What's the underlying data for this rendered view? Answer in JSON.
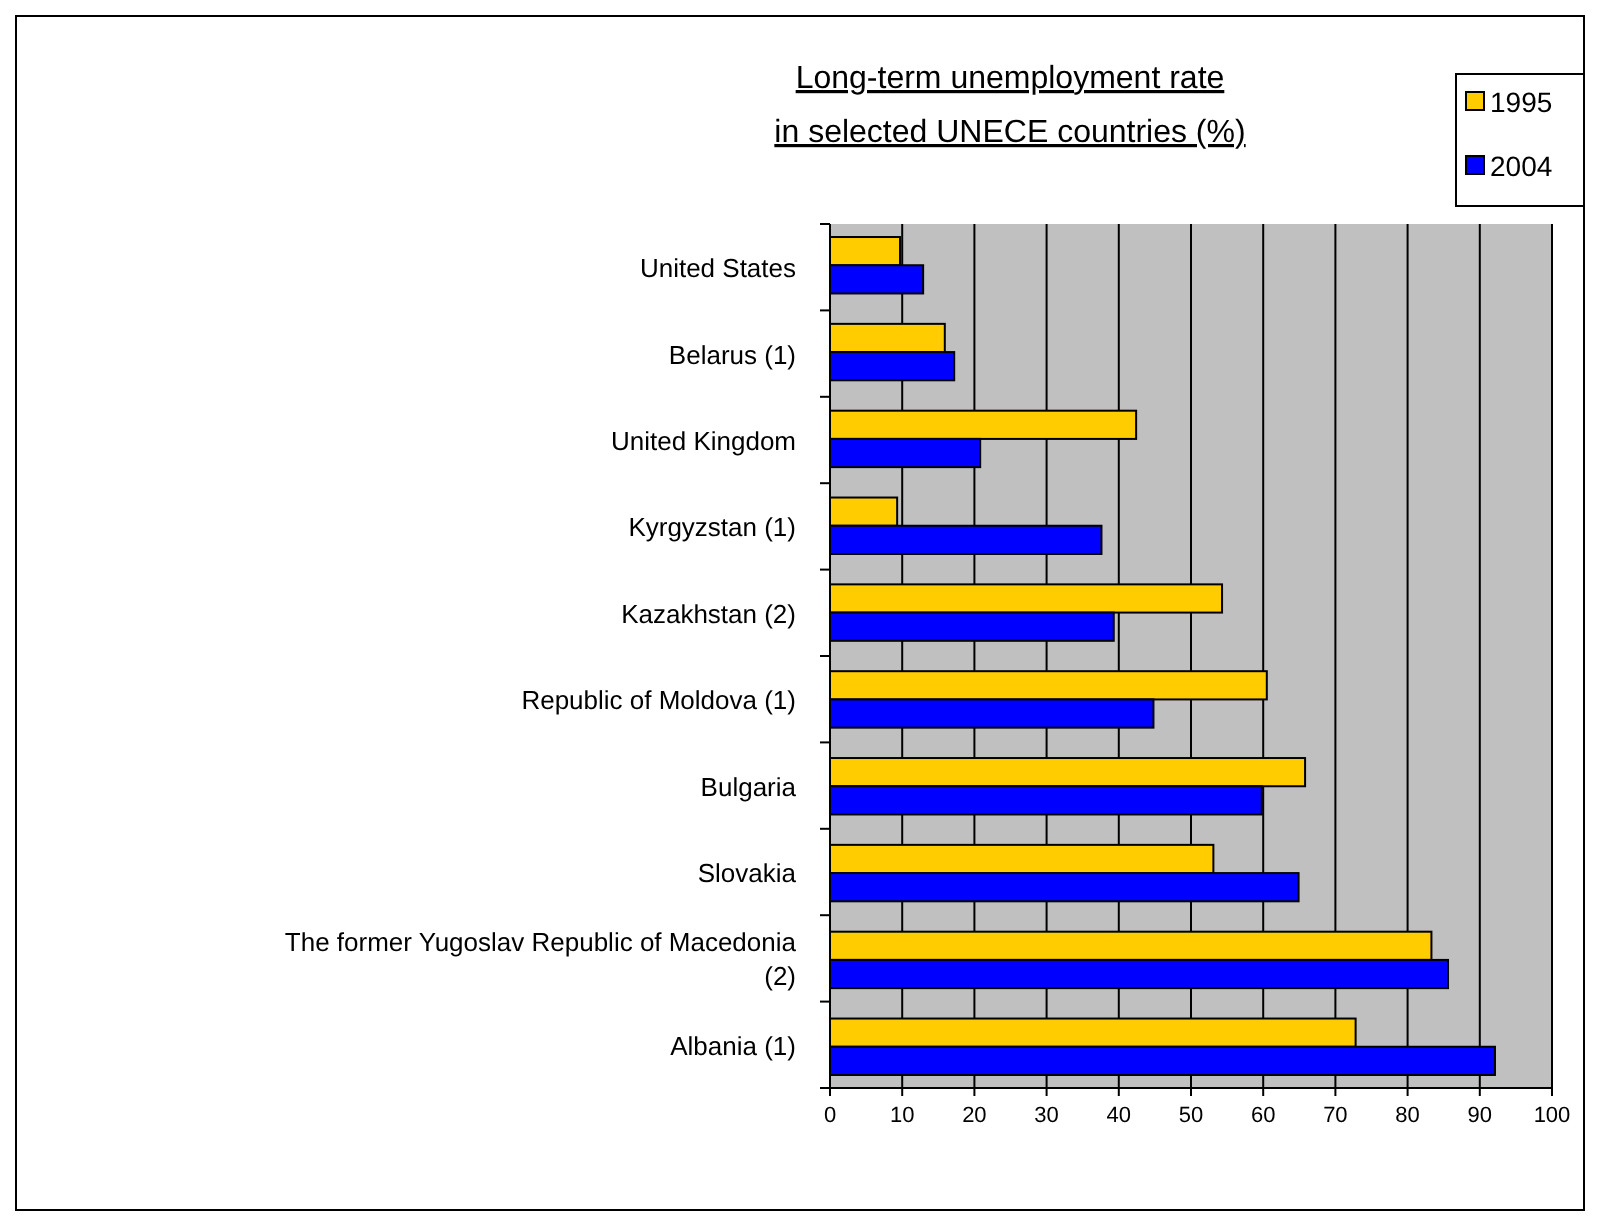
{
  "chart_data": {
    "type": "bar",
    "orientation": "horizontal",
    "title": "Long-term unemployment rate\nin selected UNECE countries (%)",
    "categories": [
      "United States",
      "Belarus (1)",
      "United Kingdom",
      "Kyrgyzstan (1)",
      "Kazakhstan (2)",
      "Republic of Moldova (1)",
      "Bulgaria",
      "Slovakia",
      "The former Yugoslav Republic of Macedonia (2)",
      "Albania (1)"
    ],
    "series": [
      {
        "name": "1995",
        "color": "#ffcc00",
        "values": [
          9.7,
          15.9,
          42.4,
          9.3,
          54.3,
          60.5,
          65.8,
          53.1,
          83.3,
          72.8
        ]
      },
      {
        "name": "2004",
        "color": "#0000ff",
        "values": [
          12.9,
          17.2,
          20.8,
          37.6,
          39.3,
          44.8,
          59.8,
          64.9,
          85.6,
          92.1
        ]
      }
    ],
    "xlim": [
      0,
      100
    ],
    "xticks": [
      0,
      10,
      20,
      30,
      40,
      50,
      60,
      70,
      80,
      90,
      100
    ],
    "grid": "x",
    "legend": "top right"
  }
}
